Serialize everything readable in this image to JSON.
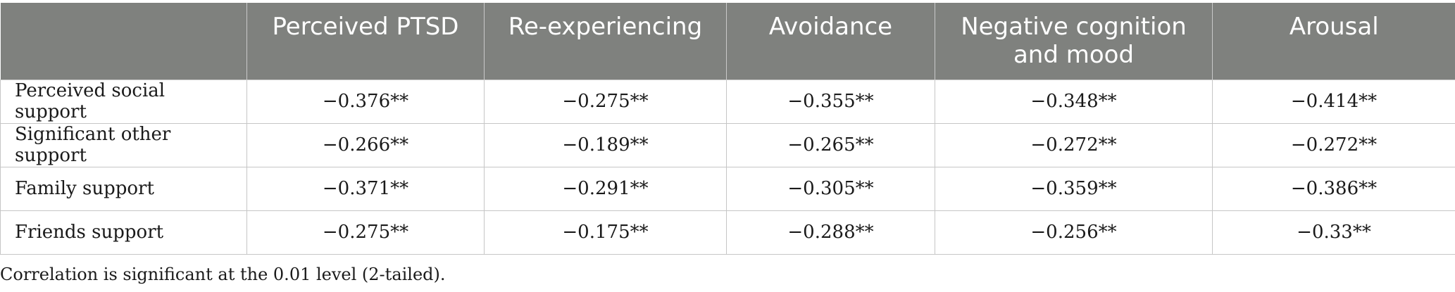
{
  "table": {
    "headers": [
      "",
      "Perceived PTSD",
      "Re-experiencing",
      "Avoidance",
      "Negative cognition and mood",
      "Arousal"
    ],
    "rows": [
      {
        "label": "Perceived social support",
        "cells": [
          "−0.376**",
          "−0.275**",
          "−0.355**",
          "−0.348**",
          "−0.414**"
        ]
      },
      {
        "label": "Significant other support",
        "cells": [
          "−0.266**",
          "−0.189**",
          "−0.265**",
          "−0.272**",
          "−0.272**"
        ]
      },
      {
        "label": "Family support",
        "cells": [
          "−0.371**",
          "−0.291**",
          "−0.305**",
          "−0.359**",
          "−0.386**"
        ]
      },
      {
        "label": "Friends support",
        "cells": [
          "−0.275**",
          "−0.175**",
          "−0.288**",
          "−0.256**",
          "−0.33**"
        ]
      }
    ],
    "header_bg": "#7f817e"
  },
  "footnote": "Correlation is significant at the 0.01 level (2-tailed)."
}
